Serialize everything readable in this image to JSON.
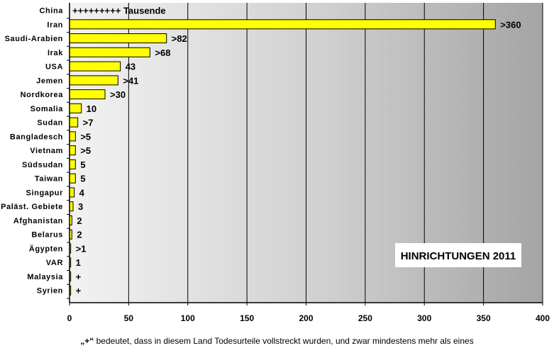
{
  "chart_data": {
    "type": "bar",
    "orientation": "horizontal",
    "title": "HINRICHTUNGEN 2011",
    "categories": [
      "China",
      "Iran",
      "Saudi-Arabien",
      "Irak",
      "USA",
      "Jemen",
      "Nordkorea",
      "Somalia",
      "Sudan",
      "Bangladesch",
      "Vietnam",
      "Südsudan",
      "Taiwan",
      "Singapur",
      "Paläst. Gebiete",
      "Afghanistan",
      "Belarus",
      "Ägypten",
      "VAR",
      "Malaysia",
      "Syrien"
    ],
    "values": [
      null,
      360,
      82,
      68,
      43,
      41,
      30,
      10,
      7,
      5,
      5,
      5,
      5,
      4,
      3,
      2,
      2,
      1,
      1,
      1,
      1
    ],
    "data_labels": [
      "+++++++++ Tausende",
      ">360",
      ">82",
      ">68",
      "43",
      ">41",
      ">30",
      "10",
      ">7",
      ">5",
      ">5",
      "5",
      "5",
      "4",
      "3",
      "2",
      "2",
      ">1",
      "1",
      "+",
      "+"
    ],
    "xlim": [
      0,
      400
    ],
    "xticks": [
      0,
      50,
      100,
      150,
      200,
      250,
      300,
      350,
      400
    ],
    "grid": true,
    "bar_color": "#ffff00",
    "footnote": {
      "mark": "„+“",
      "text": " bedeutet, dass in diesem Land Todesurteile vollstreckt wurden, und zwar mindestens mehr als eines"
    }
  }
}
